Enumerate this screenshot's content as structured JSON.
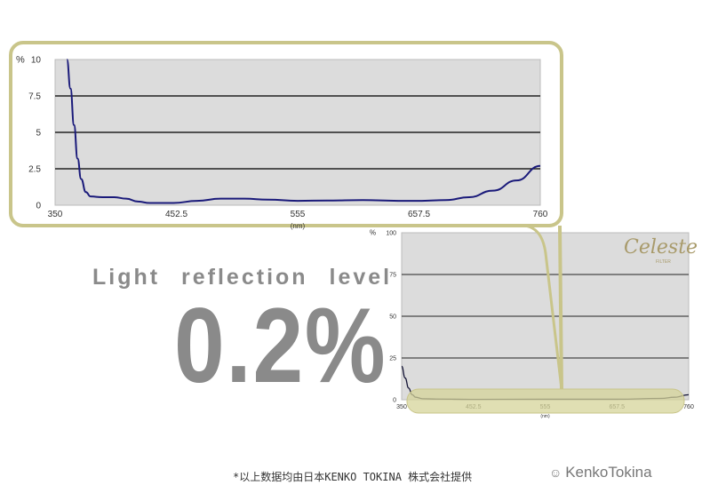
{
  "chart_data": [
    {
      "type": "line",
      "ylabel": "%",
      "xlabel": "(nm)",
      "xlim": [
        350,
        760
      ],
      "ylim": [
        0,
        10
      ],
      "xticks": [
        "350",
        "452.5",
        "555",
        "657.5",
        "760"
      ],
      "yticks": [
        "0",
        "2.5",
        "5",
        "7.5",
        "10"
      ],
      "grid": true,
      "series": [
        {
          "color": "#1a1a7a",
          "x": [
            360,
            363,
            366,
            369,
            372,
            376,
            380,
            390,
            400,
            410,
            420,
            430,
            450,
            470,
            490,
            510,
            530,
            555,
            580,
            610,
            640,
            660,
            680,
            700,
            720,
            740,
            760
          ],
          "y": [
            10,
            8,
            5.5,
            3.2,
            1.8,
            0.9,
            0.6,
            0.55,
            0.55,
            0.45,
            0.25,
            0.15,
            0.15,
            0.3,
            0.45,
            0.45,
            0.38,
            0.3,
            0.32,
            0.35,
            0.3,
            0.3,
            0.35,
            0.55,
            1.0,
            1.7,
            2.7
          ]
        }
      ]
    },
    {
      "type": "line",
      "ylabel": "%",
      "xlabel": "(nm)",
      "xlim": [
        350,
        760
      ],
      "ylim": [
        0,
        100
      ],
      "xticks": [
        "350",
        "452.5",
        "555",
        "657.5",
        "760"
      ],
      "yticks": [
        "0",
        "25",
        "50",
        "75",
        "100"
      ],
      "grid": true,
      "series": [
        {
          "color": "#111133",
          "x": [
            350,
            355,
            360,
            365,
            370,
            380,
            400,
            450,
            555,
            657.5,
            720,
            740,
            760
          ],
          "y": [
            20,
            13,
            7,
            3,
            1.5,
            0.6,
            0.4,
            0.2,
            0.3,
            0.3,
            0.8,
            1.5,
            3
          ]
        }
      ]
    }
  ],
  "headline": "Light reflection level",
  "big_value": "0.2%",
  "logo": {
    "name": "Celeste",
    "sub": "FILTER"
  },
  "footer": "*以上数据均由日本KENKO TOKINA 株式会社提供",
  "brand": "KenkoTokina",
  "colors": {
    "frame": "#c9c58a",
    "plot_bg": "#dcdcdc",
    "highlight": "#d6d49a"
  }
}
